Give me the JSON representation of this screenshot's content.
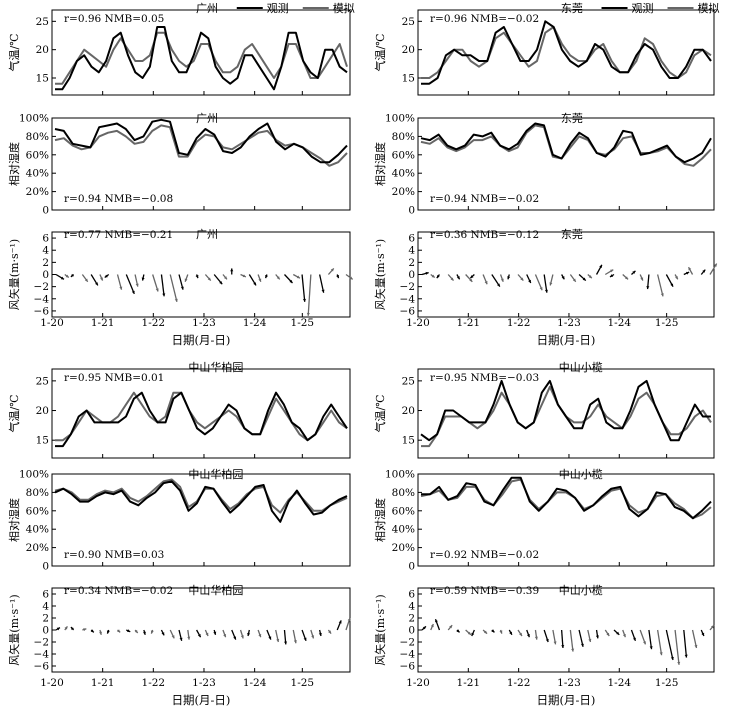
{
  "chart_data": {
    "type": "line",
    "x_label": "日期(月-日)",
    "x_ticks": [
      "1-20",
      "1-21",
      "1-22",
      "1-23",
      "1-24",
      "1-25"
    ],
    "legend": {
      "observed": "观测",
      "simulated": "模拟"
    },
    "colors": {
      "observed": "#000000",
      "simulated": "#666666"
    },
    "y_labels": {
      "temp": "气温/℃",
      "rh": "相对湿度",
      "wind": "风矢量(m·s⁻¹)"
    },
    "y_ticks": {
      "temp": [
        "15",
        "20",
        "25"
      ],
      "rh": [
        "0",
        "20%",
        "40%",
        "60%",
        "80%",
        "100%"
      ],
      "wind": [
        "−6",
        "−4",
        "−2",
        "0",
        "2",
        "4",
        "6"
      ]
    },
    "y_ranges": {
      "temp": [
        12,
        27
      ],
      "rh": [
        0,
        100
      ],
      "wind": [
        -7,
        7
      ]
    },
    "sites": [
      {
        "name": "广州",
        "temp": {
          "r": "r=0.96",
          "nmb": "NMB=0.05",
          "obs": [
            13,
            13,
            15,
            18,
            19,
            17,
            16,
            18,
            22,
            23,
            19,
            16,
            15,
            17,
            24,
            24,
            18,
            16,
            16,
            19,
            23,
            22,
            17,
            15,
            14,
            15,
            19,
            19,
            17,
            15,
            13,
            17,
            23,
            23,
            18,
            16,
            15,
            20,
            20,
            17,
            16
          ],
          "sim": [
            14,
            14,
            16,
            18,
            20,
            19,
            18,
            17,
            20,
            22,
            20,
            18,
            18,
            19,
            23,
            23,
            20,
            18,
            17,
            18,
            21,
            21,
            18,
            16,
            16,
            17,
            20,
            21,
            19,
            17,
            15,
            17,
            21,
            21,
            18,
            15,
            15,
            17,
            19,
            21,
            17
          ]
        },
        "rh": {
          "r": "r=0.94",
          "nmb": "NMB=−0.08",
          "obs": [
            88,
            86,
            72,
            70,
            68,
            90,
            92,
            94,
            88,
            76,
            80,
            96,
            98,
            96,
            62,
            60,
            78,
            88,
            82,
            64,
            62,
            68,
            80,
            88,
            94,
            74,
            66,
            72,
            68,
            58,
            52,
            52,
            60,
            70
          ],
          "sim": [
            76,
            78,
            70,
            66,
            68,
            80,
            84,
            86,
            80,
            72,
            74,
            86,
            92,
            90,
            58,
            58,
            74,
            82,
            80,
            68,
            66,
            72,
            78,
            84,
            86,
            76,
            70,
            72,
            68,
            62,
            56,
            48,
            52,
            62
          ]
        },
        "wind": {
          "r": "r=0.77",
          "nmb": "NMB=−0.21",
          "u": [
            0.6,
            0.3,
            -0.2,
            0.4,
            0.5,
            0.2,
            -0.3,
            0.3,
            0.6,
            0.2,
            -0.1,
            0.4,
            0.2,
            0.5,
            0.3,
            -0.2,
            0.1,
            0.4,
            0.6,
            0.3,
            0.0,
            0.4,
            0.5,
            0.2,
            -0.1,
            0.3,
            0.6,
            0.5,
            0.2,
            -0.2,
            0.3,
            0.4,
            0.1,
            0.5
          ],
          "v": [
            -0.8,
            -0.5,
            -0.4,
            -1.2,
            -1.8,
            -1.0,
            -0.5,
            -2.5,
            -3.2,
            -2.0,
            -1.0,
            -2.8,
            -3.6,
            -4.5,
            -2.5,
            -1.2,
            -0.6,
            -1.0,
            -1.6,
            -0.8,
            1.0,
            -0.4,
            -1.8,
            -1.2,
            -0.6,
            -0.8,
            -1.4,
            -0.6,
            -4.5,
            -6.8,
            -3.0,
            1.0,
            -0.6,
            -0.8
          ]
        }
      },
      {
        "name": "东莞",
        "temp": {
          "r": "r=0.96",
          "nmb": "NMB=−0.02",
          "obs": [
            14,
            14,
            15,
            19,
            20,
            19,
            19,
            18,
            18,
            23,
            24,
            21,
            18,
            18,
            20,
            25,
            24,
            20,
            18,
            17,
            18,
            21,
            20,
            17,
            16,
            16,
            19,
            21,
            20,
            17,
            15,
            15,
            17,
            20,
            20,
            18
          ],
          "sim": [
            15,
            15,
            16,
            18,
            20,
            20,
            18,
            17,
            18,
            22,
            23,
            21,
            19,
            17,
            18,
            23,
            24,
            21,
            19,
            18,
            18,
            20,
            21,
            18,
            16,
            16,
            18,
            22,
            21,
            18,
            16,
            15,
            16,
            19,
            20,
            19
          ]
        },
        "rh": {
          "r": "r=0.94",
          "nmb": "NMB=−0.02",
          "obs": [
            78,
            76,
            82,
            70,
            66,
            70,
            82,
            80,
            84,
            70,
            66,
            72,
            86,
            94,
            92,
            60,
            56,
            72,
            84,
            78,
            62,
            58,
            68,
            86,
            84,
            60,
            62,
            66,
            70,
            58,
            52,
            56,
            62,
            78
          ],
          "sim": [
            74,
            72,
            78,
            68,
            64,
            68,
            76,
            76,
            80,
            70,
            64,
            68,
            84,
            92,
            90,
            58,
            56,
            68,
            80,
            76,
            62,
            60,
            66,
            78,
            80,
            62,
            62,
            64,
            68,
            58,
            50,
            48,
            56,
            66
          ]
        },
        "wind": {
          "r": "r=0.36",
          "nmb": "NMB=−0.12",
          "u": [
            0.5,
            0.3,
            -0.2,
            0.4,
            0.2,
            0.5,
            -0.3,
            0.3,
            0.6,
            0.2,
            -0.1,
            0.4,
            0.3,
            0.5,
            0.2,
            -0.2,
            0.2,
            0.4,
            0.5,
            0.3,
            0.4,
            0.6,
            -0.3,
            0.4,
            0.3,
            0.2,
            -0.1,
            0.4,
            0.5,
            0.2,
            0.4,
            -0.3,
            0.3,
            0.5
          ],
          "v": [
            0.3,
            -0.5,
            -0.6,
            -1.0,
            -0.8,
            -1.2,
            -0.6,
            -1.6,
            -2.0,
            -1.2,
            -0.8,
            -1.0,
            -1.4,
            -2.6,
            -3.0,
            -1.8,
            -0.8,
            -1.2,
            -1.0,
            -0.6,
            1.6,
            0.8,
            -0.4,
            -0.8,
            0.6,
            -1.0,
            -2.4,
            -3.6,
            -2.0,
            -0.8,
            0.4,
            1.2,
            0.8,
            1.8
          ]
        }
      },
      {
        "name": "中山华柏园",
        "temp": {
          "r": "r=0.95",
          "nmb": "NMB=0.01",
          "obs": [
            14,
            14,
            16,
            19,
            20,
            18,
            18,
            18,
            18,
            19,
            22,
            23,
            20,
            18,
            18,
            22,
            23,
            20,
            17,
            16,
            17,
            19,
            21,
            20,
            17,
            16,
            16,
            20,
            23,
            21,
            18,
            17,
            15,
            16,
            19,
            21,
            19,
            17
          ],
          "sim": [
            15,
            15,
            16,
            18,
            20,
            19,
            18,
            18,
            19,
            21,
            23,
            21,
            19,
            18,
            19,
            23,
            23,
            20,
            18,
            17,
            18,
            19,
            20,
            19,
            17,
            16,
            16,
            19,
            22,
            20,
            18,
            16,
            15,
            16,
            18,
            20,
            18,
            17
          ]
        },
        "rh": {
          "r": "r=0.90",
          "nmb": "NMB=0.03",
          "obs": [
            80,
            84,
            78,
            70,
            70,
            76,
            80,
            78,
            82,
            70,
            66,
            74,
            80,
            90,
            92,
            82,
            60,
            68,
            86,
            84,
            70,
            58,
            66,
            76,
            86,
            88,
            60,
            48,
            70,
            82,
            68,
            56,
            58,
            66,
            72,
            76
          ],
          "sim": [
            82,
            84,
            80,
            72,
            72,
            78,
            82,
            80,
            84,
            74,
            70,
            76,
            84,
            92,
            94,
            86,
            64,
            70,
            84,
            84,
            72,
            62,
            68,
            78,
            84,
            86,
            66,
            58,
            72,
            80,
            70,
            60,
            60,
            66,
            70,
            74
          ]
        },
        "wind": {
          "r": "r=0.34",
          "nmb": "NMB=−0.02",
          "u": [
            0.3,
            0.2,
            -0.2,
            0.3,
            0.2,
            0.1,
            -0.1,
            0.2,
            0.3,
            0.2,
            0.1,
            -0.1,
            0.2,
            0.3,
            0.2,
            0.1,
            0.3,
            0.2,
            0.1,
            0.2,
            0.3,
            0.2,
            -0.1,
            0.2,
            0.3,
            0.2,
            0.1,
            0.2,
            0.3,
            0.2,
            0.1,
            0.2,
            0.3,
            0.3
          ],
          "v": [
            0.4,
            0.6,
            0.5,
            0.2,
            -0.4,
            -0.8,
            -0.6,
            -0.4,
            -0.3,
            -0.5,
            -0.8,
            -0.6,
            -0.9,
            -1.4,
            -1.8,
            -1.6,
            -1.2,
            -1.0,
            -0.8,
            -1.2,
            -1.6,
            -1.4,
            -1.0,
            -1.2,
            -1.6,
            -2.0,
            -2.4,
            -2.2,
            -1.8,
            -1.4,
            -1.0,
            -0.6,
            1.6,
            2.0
          ]
        }
      },
      {
        "name": "中山小榄",
        "temp": {
          "r": "r=0.95",
          "nmb": "NMB=−0.03",
          "obs": [
            16,
            15,
            16,
            20,
            20,
            19,
            18,
            18,
            18,
            21,
            25,
            21,
            18,
            17,
            18,
            23,
            25,
            21,
            19,
            17,
            17,
            21,
            22,
            18,
            17,
            17,
            20,
            24,
            25,
            21,
            18,
            15,
            15,
            18,
            21,
            19,
            19
          ],
          "sim": [
            14,
            14,
            16,
            19,
            19,
            19,
            18,
            17,
            18,
            20,
            23,
            21,
            18,
            17,
            18,
            21,
            24,
            21,
            19,
            18,
            18,
            19,
            21,
            19,
            18,
            17,
            19,
            22,
            23,
            21,
            18,
            16,
            16,
            17,
            19,
            20,
            18
          ]
        },
        "rh": {
          "r": "r=0.92",
          "nmb": "NMB=−0.02",
          "obs": [
            78,
            78,
            86,
            72,
            76,
            90,
            88,
            70,
            66,
            82,
            96,
            96,
            70,
            60,
            70,
            84,
            82,
            74,
            60,
            66,
            76,
            84,
            86,
            62,
            54,
            62,
            80,
            78,
            64,
            60,
            52,
            60,
            70
          ],
          "sim": [
            76,
            78,
            82,
            72,
            74,
            86,
            86,
            72,
            66,
            78,
            92,
            94,
            72,
            62,
            70,
            80,
            80,
            74,
            62,
            66,
            74,
            82,
            84,
            66,
            58,
            62,
            76,
            78,
            68,
            62,
            52,
            56,
            64
          ]
        },
        "wind": {
          "r": "r=0.59",
          "nmb": "NMB=−0.39",
          "u": [
            0.3,
            0.2,
            -0.3,
            0.3,
            0.2,
            0.4,
            -0.2,
            0.3,
            0.2,
            0.1,
            0.2,
            0.3,
            0.2,
            0.1,
            0.3,
            0.2,
            0.1,
            0.2,
            0.3,
            0.2,
            0.1,
            0.3,
            0.4,
            0.2,
            0.3,
            0.4,
            0.2,
            0.3,
            0.5,
            0.3,
            0.2,
            0.3,
            0.2,
            0.3
          ],
          "v": [
            0.6,
            1.0,
            1.8,
            0.8,
            -0.4,
            -0.8,
            -1.0,
            -0.6,
            -0.4,
            -0.6,
            -0.8,
            -1.0,
            -1.2,
            -1.6,
            -2.0,
            -2.4,
            -3.0,
            -3.6,
            -2.8,
            -2.0,
            -1.4,
            -1.0,
            -0.8,
            -1.2,
            -1.8,
            -2.4,
            -3.2,
            -4.2,
            -5.0,
            -5.8,
            -4.6,
            -3.0,
            -1.0,
            0.8
          ]
        }
      }
    ]
  }
}
